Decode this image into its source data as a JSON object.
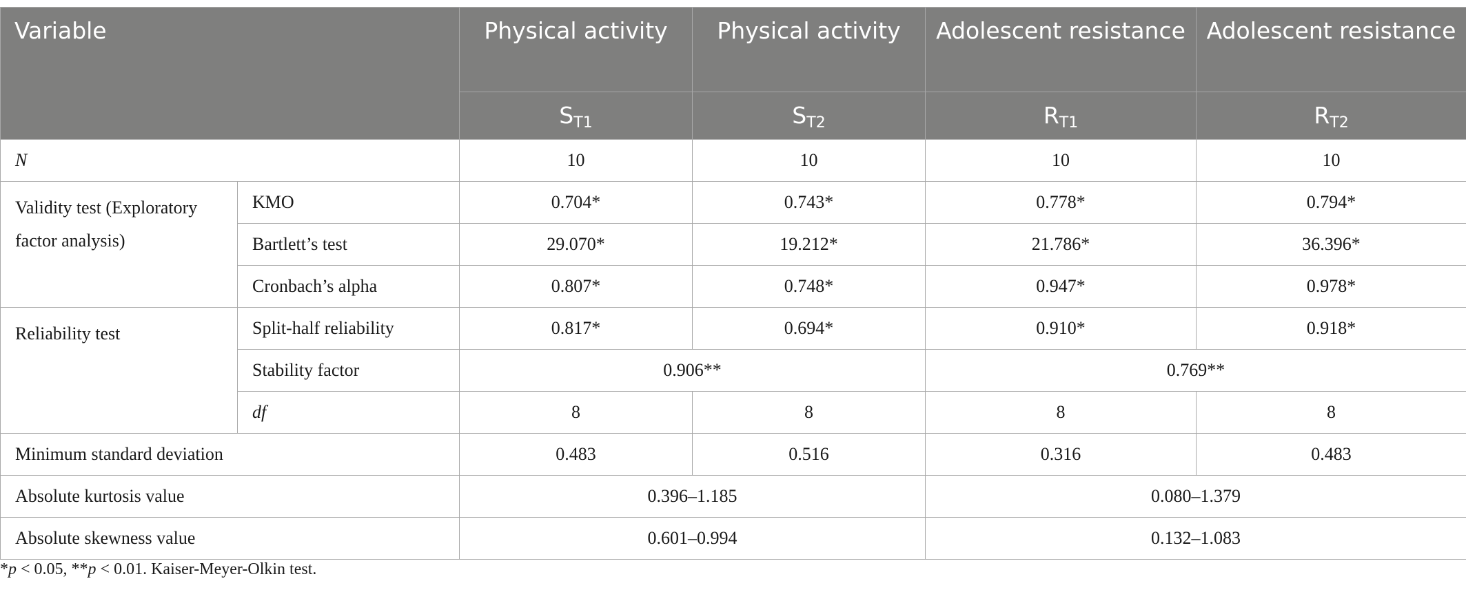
{
  "header": {
    "variable": "Variable",
    "groups": [
      "Physical activity",
      "Physical activity",
      "Adolescent resistance",
      "Adolescent resistance"
    ],
    "sub_base": [
      "S",
      "S",
      "R",
      "R"
    ],
    "sub_index": [
      "T1",
      "T2",
      "T1",
      "T2"
    ]
  },
  "rows": {
    "n": {
      "label": "N",
      "values": [
        "10",
        "10",
        "10",
        "10"
      ]
    },
    "validity": {
      "label": "Validity test (Exploratory factor analysis)"
    },
    "kmo": {
      "label": "KMO",
      "values": [
        "0.704*",
        "0.743*",
        "0.778*",
        "0.794*"
      ]
    },
    "bartlett": {
      "label": "Bartlett’s test",
      "values": [
        "29.070*",
        "19.212*",
        "21.786*",
        "36.396*"
      ]
    },
    "cronbach": {
      "label": "Cronbach’s alpha",
      "values": [
        "0.807*",
        "0.748*",
        "0.947*",
        "0.978*"
      ]
    },
    "reliability": {
      "label": "Reliability test"
    },
    "split_half": {
      "label": "Split-half reliability",
      "values": [
        "0.817*",
        "0.694*",
        "0.910*",
        "0.918*"
      ]
    },
    "stability": {
      "label": "Stability factor",
      "values": [
        "0.906**",
        "0.769**"
      ]
    },
    "df": {
      "label": "df",
      "values": [
        "8",
        "8",
        "8",
        "8"
      ]
    },
    "min_sd": {
      "label": "Minimum standard deviation",
      "values": [
        "0.483",
        "0.516",
        "0.316",
        "0.483"
      ]
    },
    "kurtosis": {
      "label": "Absolute kurtosis value",
      "values": [
        "0.396–1.185",
        "0.080–1.379"
      ]
    },
    "skewness": {
      "label": "Absolute skewness value",
      "values": [
        "0.601–0.994",
        "0.132–1.083"
      ]
    }
  },
  "footnote": {
    "star1_prefix": "*",
    "p": "p",
    "star1_value": " < 0.05, **",
    "p2": "p",
    "star2_value": " < 0.01. Kaiser-Meyer-Olkin test."
  }
}
